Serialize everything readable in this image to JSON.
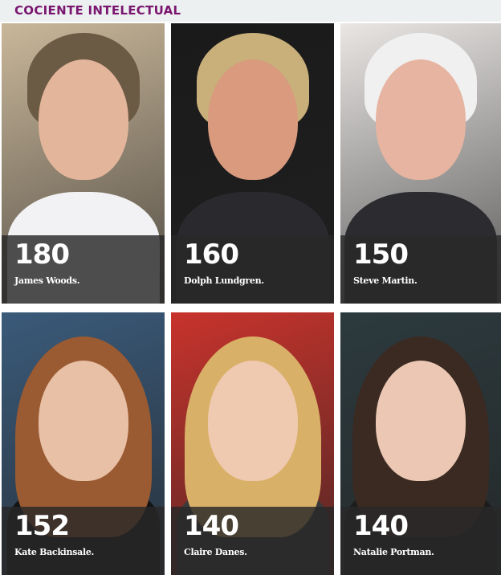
{
  "header": {
    "title": "COCIENTE INTELECTUAL",
    "title_color": "#7a1670"
  },
  "people": [
    {
      "score": "180",
      "name": "James Woods.",
      "bg": "#c9b79a",
      "hair": "#6b5a44",
      "skin": "#e3b59b",
      "shirt": "#f2f2f4"
    },
    {
      "score": "160",
      "name": "Dolph Lundgren.",
      "bg": "#1a1a1a",
      "hair": "#c9b07a",
      "skin": "#d99a7e",
      "shirt": "#2a2a2e"
    },
    {
      "score": "150",
      "name": "Steve Martin.",
      "bg": "#e9e6e4",
      "hair": "#f0f0f0",
      "skin": "#e6b4a0",
      "shirt": "#2c2c30"
    },
    {
      "score": "152",
      "name": "Kate Backinsale.",
      "bg": "#3a5a7a",
      "hair": "#9a5a32",
      "skin": "#e8c0a6",
      "shirt": "#141414"
    },
    {
      "score": "140",
      "name": "Claire Danes.",
      "bg": "#c8332c",
      "hair": "#d9b067",
      "skin": "#efc9b0",
      "shirt": "#3a3a3a"
    },
    {
      "score": "140",
      "name": "Natalie Portman.",
      "bg": "#2c3a3e",
      "hair": "#3a2a22",
      "skin": "#ecc8b4",
      "shirt": "#1c1c1c"
    }
  ]
}
